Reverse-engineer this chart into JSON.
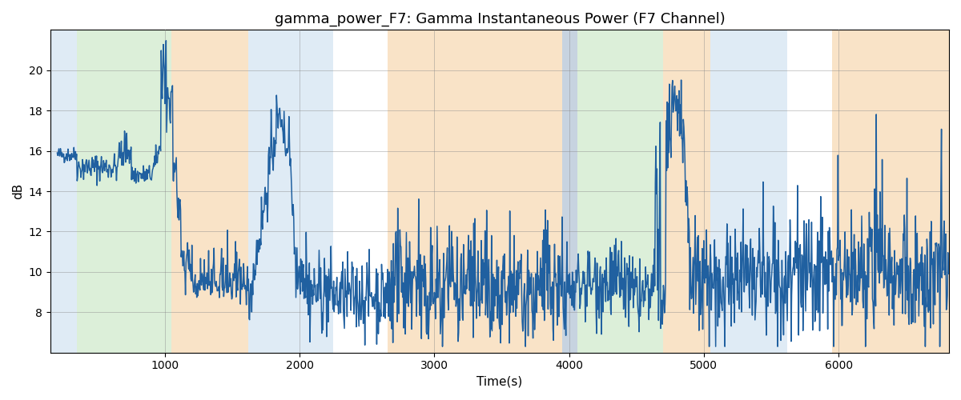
{
  "title": "gamma_power_F7: Gamma Instantaneous Power (F7 Channel)",
  "xlabel": "Time(s)",
  "ylabel": "dB",
  "ylim": [
    6,
    22
  ],
  "xlim": [
    150,
    6820
  ],
  "yticks": [
    8,
    10,
    12,
    14,
    16,
    18,
    20
  ],
  "xticks": [
    1000,
    2000,
    3000,
    4000,
    5000,
    6000
  ],
  "bg_regions": [
    {
      "xmin": 150,
      "xmax": 345,
      "color": "#b0cfe8",
      "alpha": 0.4
    },
    {
      "xmin": 345,
      "xmax": 1050,
      "color": "#a8d8a0",
      "alpha": 0.4
    },
    {
      "xmin": 1050,
      "xmax": 1620,
      "color": "#f5c990",
      "alpha": 0.5
    },
    {
      "xmin": 1620,
      "xmax": 2250,
      "color": "#b0cfe8",
      "alpha": 0.4
    },
    {
      "xmin": 2650,
      "xmax": 3950,
      "color": "#f5c990",
      "alpha": 0.5
    },
    {
      "xmin": 3950,
      "xmax": 4060,
      "color": "#9ab0c8",
      "alpha": 0.55
    },
    {
      "xmin": 4060,
      "xmax": 4700,
      "color": "#a8d8a0",
      "alpha": 0.4
    },
    {
      "xmin": 4700,
      "xmax": 5050,
      "color": "#f5c990",
      "alpha": 0.5
    },
    {
      "xmin": 5050,
      "xmax": 5620,
      "color": "#b0cfe8",
      "alpha": 0.4
    },
    {
      "xmin": 5950,
      "xmax": 6820,
      "color": "#f5c990",
      "alpha": 0.5
    }
  ],
  "line_color": "#2060a0",
  "line_width": 1.1,
  "grid_color": "#888888",
  "grid_alpha": 0.5,
  "grid_linewidth": 0.6,
  "fig_width": 12.0,
  "fig_height": 5.0,
  "dpi": 100,
  "title_fontsize": 13
}
